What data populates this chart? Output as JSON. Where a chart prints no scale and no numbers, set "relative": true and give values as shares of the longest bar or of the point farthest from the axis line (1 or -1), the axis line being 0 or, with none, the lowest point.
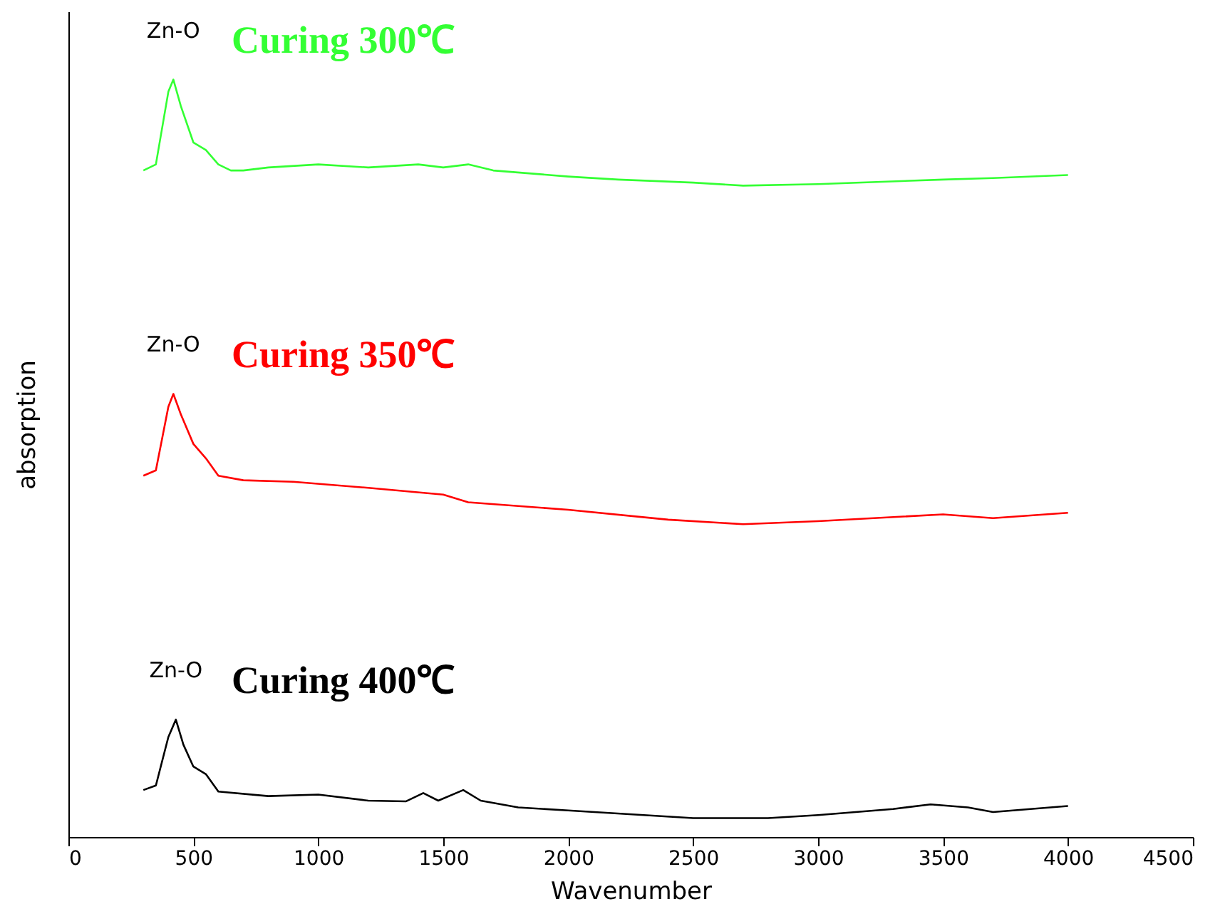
{
  "chart_data": {
    "type": "line",
    "relative": true,
    "xlabel": "Wavenumber",
    "ylabel": "absorption",
    "xlim": [
      0,
      4500
    ],
    "xticks": [
      0,
      500,
      1000,
      1500,
      2000,
      2500,
      3000,
      3500,
      4000,
      4500
    ],
    "grid": false,
    "marker": "none",
    "line_style": "solid",
    "series": [
      {
        "name": "Curing 300℃",
        "color": "#33ff33",
        "x": [
          300,
          350,
          400,
          420,
          450,
          500,
          550,
          600,
          650,
          700,
          800,
          1000,
          1200,
          1400,
          1500,
          1600,
          1700,
          2000,
          2200,
          2500,
          2700,
          3000,
          3500,
          3700,
          4000
        ],
        "values": [
          0.88,
          0.888,
          0.984,
          1,
          0.965,
          0.917,
          0.907,
          0.888,
          0.88,
          0.88,
          0.884,
          0.888,
          0.884,
          0.888,
          0.884,
          0.888,
          0.88,
          0.872,
          0.868,
          0.864,
          0.86,
          0.862,
          0.868,
          0.87,
          0.874
        ]
      },
      {
        "name": "Curing 350℃",
        "color": "#ff0000",
        "x": [
          300,
          350,
          400,
          420,
          450,
          500,
          550,
          600,
          700,
          900,
          1200,
          1500,
          1600,
          2000,
          2400,
          2700,
          3000,
          3500,
          3700,
          4000
        ],
        "values": [
          0.477,
          0.484,
          0.568,
          0.585,
          0.558,
          0.519,
          0.5,
          0.477,
          0.471,
          0.469,
          0.461,
          0.452,
          0.442,
          0.432,
          0.419,
          0.413,
          0.417,
          0.426,
          0.421,
          0.428
        ]
      },
      {
        "name": "Curing 400℃",
        "color": "#000000",
        "x": [
          300,
          350,
          400,
          430,
          460,
          500,
          550,
          600,
          800,
          1000,
          1200,
          1350,
          1420,
          1480,
          1580,
          1650,
          1800,
          2000,
          2500,
          2800,
          3000,
          3300,
          3450,
          3600,
          3700,
          4000
        ],
        "values": [
          0.062,
          0.068,
          0.132,
          0.155,
          0.122,
          0.093,
          0.083,
          0.06,
          0.054,
          0.056,
          0.048,
          0.047,
          0.058,
          0.048,
          0.062,
          0.048,
          0.039,
          0.035,
          0.025,
          0.025,
          0.029,
          0.037,
          0.043,
          0.039,
          0.033,
          0.041
        ]
      }
    ],
    "annotations": [
      "Zn-O",
      "Zn-O",
      "Zn-O"
    ]
  }
}
